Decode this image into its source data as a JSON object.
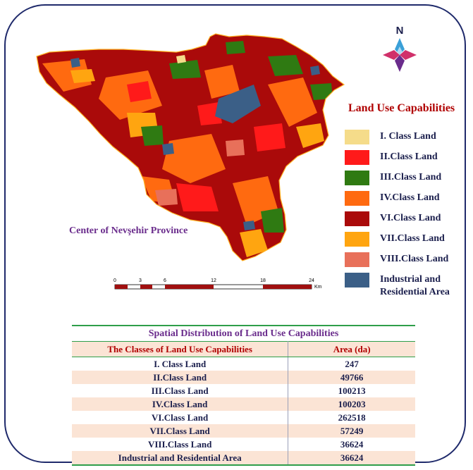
{
  "map": {
    "legend_title": "Land Use Capabilities",
    "center_label": "Center of Nevşehir Province",
    "compass_label": "N",
    "scale": {
      "ticks": [
        "0",
        "3",
        "6",
        "12",
        "18",
        "24"
      ],
      "unit": "Km"
    },
    "legend": [
      {
        "label": "I. Class Land",
        "color": "#f5dc8a"
      },
      {
        "label": "II.Class Land",
        "color": "#ff1a1a"
      },
      {
        "label": "III.Class Land",
        "color": "#2f7a12"
      },
      {
        "label": "IV.Class Land",
        "color": "#ff6a10"
      },
      {
        "label": "VI.Class Land",
        "color": "#aa0a0a"
      },
      {
        "label": "VII.Class Land",
        "color": "#ffa510"
      },
      {
        "label": "VIII.Class Land",
        "color": "#e8705a"
      },
      {
        "label": "Industrial and\nResidential Area",
        "line1": "Industrial and",
        "line2": "Residential Area",
        "color": "#3b5f87"
      }
    ]
  },
  "table": {
    "title": "Spatial Distribution of Land Use Capabilities",
    "headers": [
      "The Classes of Land Use Capabilities",
      "Area (da)"
    ],
    "rows": [
      [
        "I. Class Land",
        "247"
      ],
      [
        "II.Class Land",
        "49766"
      ],
      [
        "III.Class Land",
        "100213"
      ],
      [
        "IV.Class Land",
        "100203"
      ],
      [
        "VI.Class Land",
        "262518"
      ],
      [
        "VII.Class Land",
        "57249"
      ],
      [
        "VIII.Class Land",
        "36624"
      ],
      [
        "Industrial and Residential Area",
        "36624"
      ]
    ]
  }
}
